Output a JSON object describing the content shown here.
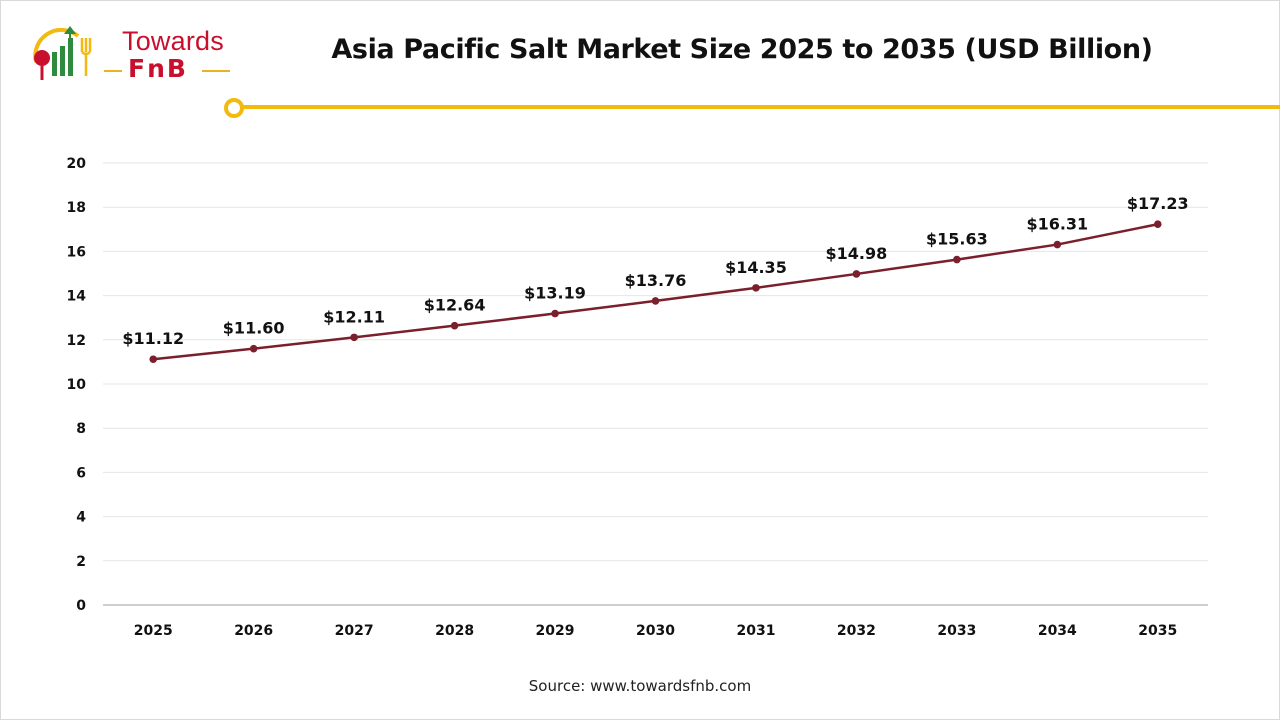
{
  "brand": {
    "word": "Towards",
    "sub": "FnB"
  },
  "accent_color": "#f2b90f",
  "line_color": "#7a1f2b",
  "source": "Source: www.towardsfnb.com",
  "chart_data": {
    "type": "line",
    "title": "Asia Pacific Salt Market Size 2025 to 2035 (USD Billion)",
    "xlabel": "",
    "ylabel": "",
    "categories": [
      "2025",
      "2026",
      "2027",
      "2028",
      "2029",
      "2030",
      "2031",
      "2032",
      "2033",
      "2034",
      "2035"
    ],
    "values": [
      11.12,
      11.6,
      12.11,
      12.64,
      13.19,
      13.76,
      14.35,
      14.98,
      15.63,
      16.31,
      17.23
    ],
    "data_labels": [
      "$11.12",
      "$11.60",
      "$12.11",
      "$12.64",
      "$13.19",
      "$13.76",
      "$14.35",
      "$14.98",
      "$15.63",
      "$16.31",
      "$17.23"
    ],
    "ylim": [
      0,
      20
    ],
    "yticks": [
      0,
      2,
      4,
      6,
      8,
      10,
      12,
      14,
      16,
      18,
      20
    ],
    "grid": true,
    "legend": "none"
  }
}
